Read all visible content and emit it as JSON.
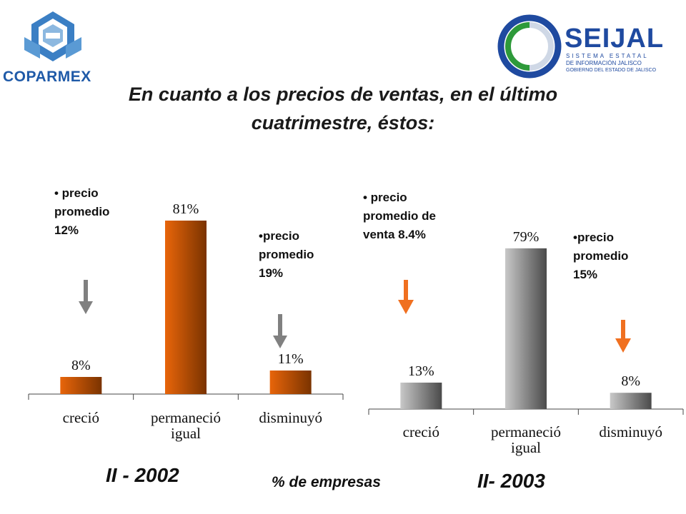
{
  "logos": {
    "left_text": "COPARMEX",
    "right_text": "SEIJAL",
    "right_sub": [
      "SISTEMA ESTATAL",
      "DE INFORMACIÓN JALISCO",
      "GOBIERNO DEL ESTADO DE JALISCO"
    ]
  },
  "title_lines": [
    "En cuanto a los precios de ventas, en el último",
    "cuatrimestre, éstos:"
  ],
  "annotations_2002": {
    "up": [
      "• precio",
      "promedio",
      "12%"
    ],
    "down": [
      "•precio",
      "promedio",
      "19%"
    ]
  },
  "annotations_2003": {
    "up": [
      "• precio",
      "promedio de",
      "venta 8.4%"
    ],
    "down": [
      "•precio",
      "promedio",
      "15%"
    ]
  },
  "period_2002": "II - 2002",
  "period_2003": "II- 2003",
  "unit_label": "% de empresas",
  "chart_data": [
    {
      "type": "bar",
      "title": "II - 2002",
      "categories": [
        "creció",
        [
          "permaneció",
          "igual"
        ],
        "disminuyó"
      ],
      "values": [
        8,
        81,
        11
      ],
      "value_labels": [
        "8%",
        "81%",
        "11%"
      ],
      "ylim": [
        0,
        100
      ],
      "colors": [
        "#e8650a",
        "#7a3300"
      ],
      "arrow_color": "#808080"
    },
    {
      "type": "bar",
      "title": "II- 2003",
      "categories": [
        "creció",
        [
          "permaneció",
          "igual"
        ],
        "disminuyó"
      ],
      "values": [
        13,
        79,
        8
      ],
      "value_labels": [
        "13%",
        "79%",
        "8%"
      ],
      "ylim": [
        0,
        100
      ],
      "colors": [
        "#c8c8c8",
        "#4a4a4a"
      ],
      "arrow_color": "#f07020"
    }
  ]
}
